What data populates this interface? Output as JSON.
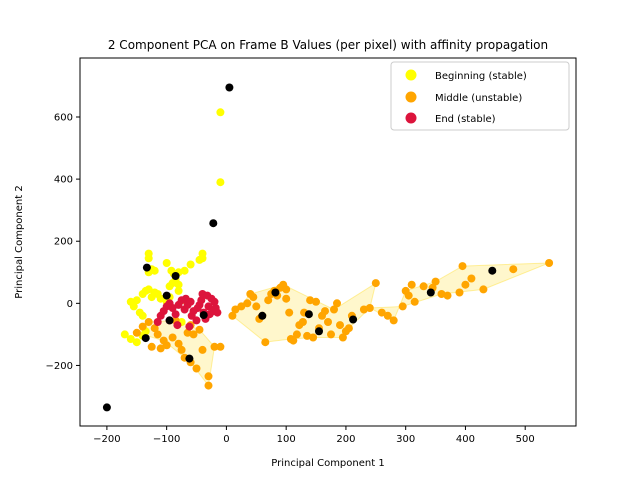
{
  "chart_data": {
    "type": "scatter",
    "title": "2 Component PCA on Frame B Values (per pixel) with affinity propagation",
    "xlabel": "Principal Component 1",
    "ylabel": "Principal Component 2",
    "xlim": [
      -245,
      585
    ],
    "ylim": [
      -395,
      790
    ],
    "xticks": [
      -200,
      -100,
      0,
      100,
      200,
      300,
      400,
      500
    ],
    "yticks": [
      -200,
      0,
      200,
      400,
      600
    ],
    "legend_position": "top-right",
    "grid": false,
    "series": [
      {
        "name": "Beginning (stable)",
        "color": "#ffff00",
        "points": [
          [
            -10,
            615
          ],
          [
            -10,
            390
          ],
          [
            -130,
            160
          ],
          [
            -130,
            145
          ],
          [
            -130,
            100
          ],
          [
            -125,
            110
          ],
          [
            -120,
            105
          ],
          [
            -100,
            130
          ],
          [
            -92,
            105
          ],
          [
            -88,
            95
          ],
          [
            -80,
            100
          ],
          [
            -70,
            105
          ],
          [
            -60,
            125
          ],
          [
            -45,
            140
          ],
          [
            -40,
            160
          ],
          [
            -40,
            145
          ],
          [
            -85,
            75
          ],
          [
            -90,
            65
          ],
          [
            -80,
            60
          ],
          [
            -95,
            55
          ],
          [
            -150,
            10
          ],
          [
            -140,
            30
          ],
          [
            -135,
            40
          ],
          [
            -130,
            45
          ],
          [
            -125,
            20
          ],
          [
            -120,
            35
          ],
          [
            -115,
            30
          ],
          [
            -110,
            15
          ],
          [
            -100,
            5
          ],
          [
            -95,
            20
          ],
          [
            -80,
            40
          ],
          [
            -70,
            10
          ],
          [
            -160,
            5
          ],
          [
            -155,
            -10
          ],
          [
            -145,
            -30
          ],
          [
            -140,
            -40
          ],
          [
            -170,
            -100
          ],
          [
            -160,
            -115
          ],
          [
            -150,
            -125
          ],
          [
            -140,
            -105
          ],
          [
            -135,
            -90
          ],
          [
            -75,
            -60
          ]
        ]
      },
      {
        "name": "Middle (unstable)",
        "color": "#ffa500",
        "points": [
          [
            -150,
            -95
          ],
          [
            -140,
            -75
          ],
          [
            -130,
            -60
          ],
          [
            -120,
            -80
          ],
          [
            -115,
            -100
          ],
          [
            -105,
            -120
          ],
          [
            -100,
            -135
          ],
          [
            -110,
            -145
          ],
          [
            -125,
            -140
          ],
          [
            -90,
            -110
          ],
          [
            -80,
            -130
          ],
          [
            -75,
            -150
          ],
          [
            -70,
            -175
          ],
          [
            -60,
            -190
          ],
          [
            -50,
            -210
          ],
          [
            -40,
            -150
          ],
          [
            -30,
            -235
          ],
          [
            -30,
            -265
          ],
          [
            -20,
            -140
          ],
          [
            -45,
            -85
          ],
          [
            -55,
            -100
          ],
          [
            -65,
            -95
          ],
          [
            -60,
            -70
          ],
          [
            -85,
            -55
          ],
          [
            -10,
            -140
          ],
          [
            10,
            -40
          ],
          [
            15,
            -20
          ],
          [
            25,
            -10
          ],
          [
            35,
            0
          ],
          [
            40,
            30
          ],
          [
            45,
            20
          ],
          [
            50,
            -10
          ],
          [
            55,
            -50
          ],
          [
            60,
            -40
          ],
          [
            65,
            -125
          ],
          [
            70,
            10
          ],
          [
            75,
            30
          ],
          [
            80,
            40
          ],
          [
            85,
            25
          ],
          [
            90,
            50
          ],
          [
            95,
            60
          ],
          [
            100,
            45
          ],
          [
            100,
            15
          ],
          [
            105,
            -30
          ],
          [
            108,
            -115
          ],
          [
            112,
            -120
          ],
          [
            118,
            -100
          ],
          [
            122,
            -70
          ],
          [
            128,
            -60
          ],
          [
            130,
            -30
          ],
          [
            135,
            -105
          ],
          [
            140,
            10
          ],
          [
            145,
            -110
          ],
          [
            150,
            5
          ],
          [
            155,
            -80
          ],
          [
            160,
            -40
          ],
          [
            165,
            -25
          ],
          [
            170,
            -60
          ],
          [
            175,
            -100
          ],
          [
            180,
            -20
          ],
          [
            185,
            0
          ],
          [
            190,
            -70
          ],
          [
            195,
            -110
          ],
          [
            200,
            -90
          ],
          [
            205,
            -80
          ],
          [
            210,
            -40
          ],
          [
            230,
            -20
          ],
          [
            240,
            -15
          ],
          [
            250,
            65
          ],
          [
            260,
            -30
          ],
          [
            270,
            -40
          ],
          [
            280,
            -55
          ],
          [
            295,
            -10
          ],
          [
            300,
            40
          ],
          [
            305,
            25
          ],
          [
            310,
            60
          ],
          [
            315,
            5
          ],
          [
            330,
            55
          ],
          [
            345,
            50
          ],
          [
            350,
            70
          ],
          [
            360,
            30
          ],
          [
            370,
            25
          ],
          [
            390,
            35
          ],
          [
            395,
            120
          ],
          [
            400,
            60
          ],
          [
            410,
            80
          ],
          [
            430,
            45
          ],
          [
            480,
            110
          ],
          [
            540,
            130
          ]
        ]
      },
      {
        "name": "End (stable)",
        "color": "#dc143c",
        "points": [
          [
            -115,
            -60
          ],
          [
            -110,
            -40
          ],
          [
            -105,
            -25
          ],
          [
            -100,
            -10
          ],
          [
            -95,
            0
          ],
          [
            -90,
            -15
          ],
          [
            -85,
            -35
          ],
          [
            -80,
            -5
          ],
          [
            -75,
            10
          ],
          [
            -70,
            -20
          ],
          [
            -68,
            15
          ],
          [
            -65,
            -5
          ],
          [
            -60,
            5
          ],
          [
            -58,
            -40
          ],
          [
            -55,
            -25
          ],
          [
            -50,
            -55
          ],
          [
            -48,
            -15
          ],
          [
            -45,
            -5
          ],
          [
            -42,
            10
          ],
          [
            -40,
            30
          ],
          [
            -38,
            -30
          ],
          [
            -35,
            -50
          ],
          [
            -32,
            25
          ],
          [
            -30,
            -10
          ],
          [
            -28,
            -35
          ],
          [
            -25,
            15
          ],
          [
            -22,
            -25
          ],
          [
            -20,
            5
          ],
          [
            -18,
            -15
          ],
          [
            -15,
            -30
          ],
          [
            -95,
            -55
          ],
          [
            -82,
            -70
          ],
          [
            -62,
            -75
          ]
        ]
      },
      {
        "name": "",
        "color": "#000000",
        "points": [
          [
            5,
            695
          ],
          [
            -22,
            258
          ],
          [
            -200,
            -335
          ],
          [
            -133,
            115
          ],
          [
            -85,
            88
          ],
          [
            -100,
            25
          ],
          [
            -95,
            -55
          ],
          [
            -38,
            -38
          ],
          [
            -135,
            -112
          ],
          [
            -62,
            -178
          ],
          [
            60,
            -40
          ],
          [
            82,
            35
          ],
          [
            138,
            -35
          ],
          [
            155,
            -90
          ],
          [
            212,
            -52
          ],
          [
            342,
            35
          ],
          [
            445,
            105
          ]
        ]
      }
    ],
    "cluster_hulls": [
      [
        [
          -150,
          -95
        ],
        [
          -105,
          -120
        ],
        [
          -60,
          -190
        ],
        [
          -30,
          -265
        ],
        [
          -20,
          -140
        ],
        [
          -45,
          -85
        ],
        [
          -85,
          -55
        ],
        [
          -130,
          -60
        ]
      ],
      [
        [
          10,
          -40
        ],
        [
          65,
          -125
        ],
        [
          108,
          -115
        ],
        [
          145,
          -110
        ],
        [
          195,
          -110
        ],
        [
          205,
          -80
        ],
        [
          240,
          -15
        ],
        [
          250,
          65
        ],
        [
          180,
          -20
        ],
        [
          95,
          60
        ],
        [
          40,
          30
        ]
      ],
      [
        [
          240,
          -15
        ],
        [
          280,
          -55
        ],
        [
          300,
          40
        ],
        [
          350,
          70
        ],
        [
          395,
          120
        ],
        [
          540,
          130
        ],
        [
          430,
          45
        ],
        [
          360,
          30
        ],
        [
          295,
          -10
        ]
      ]
    ]
  },
  "legend": [
    {
      "label": "Beginning (stable)",
      "color": "#ffff00"
    },
    {
      "label": "Middle (unstable)",
      "color": "#ffa500"
    },
    {
      "label": "End (stable)",
      "color": "#dc143c"
    }
  ]
}
